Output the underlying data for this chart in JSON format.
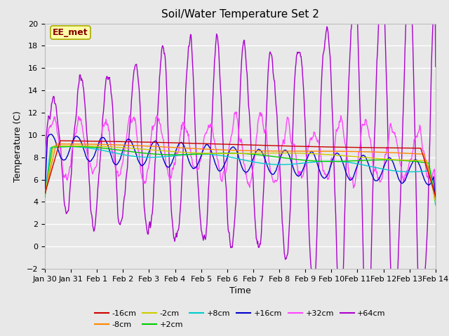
{
  "title": "Soil/Water Temperature Set 2",
  "xlabel": "Time",
  "ylabel": "Temperature (C)",
  "xlim": [
    0,
    15
  ],
  "ylim": [
    -2,
    20
  ],
  "yticks": [
    -2,
    0,
    2,
    4,
    6,
    8,
    10,
    12,
    14,
    16,
    18,
    20
  ],
  "xtick_labels": [
    "Jan 30",
    "Jan 31",
    "Feb 1",
    "Feb 2",
    "Feb 3",
    "Feb 4",
    "Feb 5",
    "Feb 6",
    "Feb 7",
    "Feb 8",
    "Feb 9",
    "Feb 10",
    "Feb 11",
    "Feb 12",
    "Feb 13",
    "Feb 14"
  ],
  "annotation_text": "EE_met",
  "series_colors": {
    "-16cm": "#cc0000",
    "-8cm": "#ff8800",
    "-2cm": "#cccc00",
    "+2cm": "#00cc00",
    "+8cm": "#00cccc",
    "+16cm": "#0000cc",
    "+32cm": "#ff44ff",
    "+64cm": "#aa00cc"
  },
  "lw": 1.0,
  "fig_bg": "#e8e8e8",
  "plot_bg": "#e8e8e8"
}
